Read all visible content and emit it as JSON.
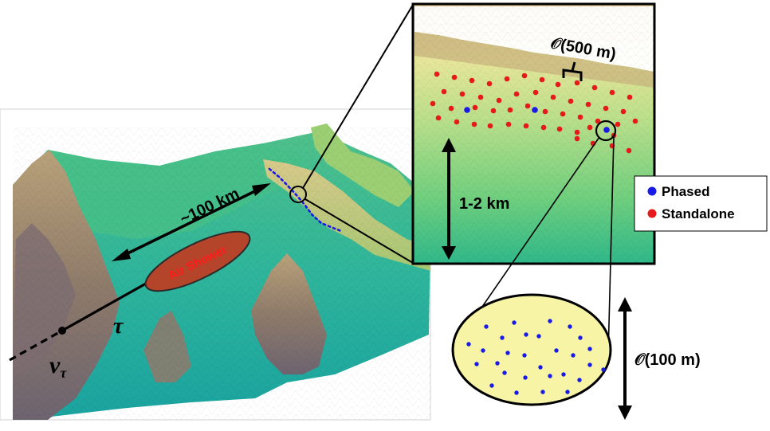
{
  "labels": {
    "distance": "~100 km",
    "air_shower": "Air Shower",
    "tau": "τ",
    "nu_tau_symbol": "ν",
    "nu_tau_subscript": "τ",
    "spacing": "𝒪(500 m)",
    "depth": "1-2 km",
    "array_size": "𝒪(100 m)"
  },
  "legend": [
    {
      "label": "Phased",
      "color": "#1a1ae6"
    },
    {
      "label": "Standalone",
      "color": "#e61a1a"
    }
  ],
  "colors": {
    "phased": "#1a1ae6",
    "standalone": "#e61a1a",
    "shower_fill": "#b5452a",
    "shower_text": "#ff1a1a",
    "inset_fill": "#f7f4a6"
  }
}
